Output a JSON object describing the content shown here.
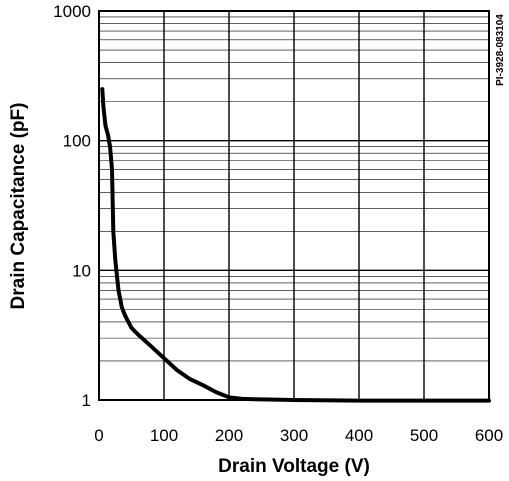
{
  "chart_data": {
    "type": "line",
    "title": "",
    "xlabel": "Drain Voltage (V)",
    "ylabel": "Drain Capacitance (pF)",
    "figure_id": "PI-3928-083104",
    "xlim": [
      0,
      600
    ],
    "ylim": [
      1,
      1000
    ],
    "yscale": "log",
    "grid": true,
    "x_ticks": [
      0,
      100,
      200,
      300,
      400,
      500,
      600
    ],
    "x_tick_labels": [
      "0",
      "100",
      "200",
      "300",
      "400",
      "500",
      "600"
    ],
    "y_ticks": [
      1,
      10,
      100,
      1000
    ],
    "y_tick_labels": [
      "1",
      "10",
      "100",
      "1000"
    ],
    "series": [
      {
        "color": "#000000",
        "x": [
          5,
          7,
          10,
          14,
          17,
          20,
          22,
          25,
          30,
          35,
          40,
          50,
          60,
          80,
          100,
          120,
          140,
          160,
          180,
          200,
          220,
          250,
          300,
          400,
          500,
          600
        ],
        "y": [
          250,
          180,
          130,
          110,
          90,
          60,
          20,
          12,
          7,
          5.2,
          4.5,
          3.6,
          3.2,
          2.6,
          2.1,
          1.7,
          1.45,
          1.3,
          1.15,
          1.05,
          1.02,
          1.01,
          1.0,
          0.99,
          0.99,
          0.99
        ]
      }
    ]
  }
}
